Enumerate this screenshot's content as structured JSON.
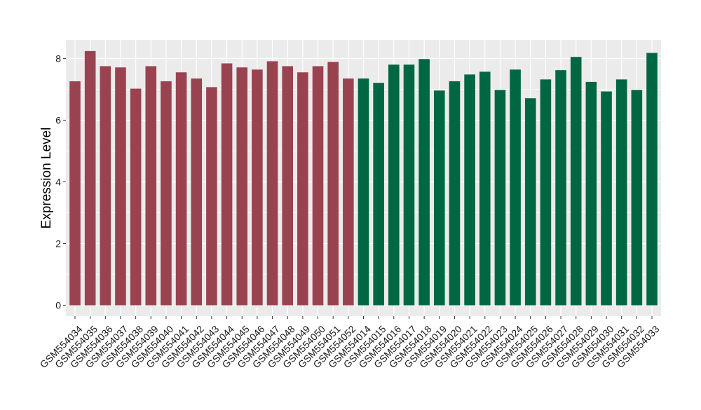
{
  "chart_data": {
    "type": "bar",
    "xlabel": "",
    "ylabel": "Expression Level",
    "ylim": [
      -0.35,
      8.6
    ],
    "yticks": [
      0,
      2,
      4,
      6,
      8
    ],
    "grid": true,
    "legend": "none",
    "colors": {
      "group_1": "#9a4350",
      "group_2": "#006743",
      "panel_bg": "#ebebeb",
      "grid": "#ffffff"
    },
    "categories": [
      "GSM554034",
      "GSM554035",
      "GSM554036",
      "GSM554037",
      "GSM554038",
      "GSM554039",
      "GSM554040",
      "GSM554041",
      "GSM554042",
      "GSM554043",
      "GSM554044",
      "GSM554045",
      "GSM554046",
      "GSM554047",
      "GSM554048",
      "GSM554049",
      "GSM554050",
      "GSM554051",
      "GSM554052",
      "GSM554014",
      "GSM554015",
      "GSM554016",
      "GSM554017",
      "GSM554018",
      "GSM554019",
      "GSM554020",
      "GSM554021",
      "GSM554022",
      "GSM554023",
      "GSM554024",
      "GSM554025",
      "GSM554026",
      "GSM554027",
      "GSM554028",
      "GSM554029",
      "GSM554030",
      "GSM554031",
      "GSM554032",
      "GSM554033"
    ],
    "values": [
      7.26,
      8.24,
      7.75,
      7.71,
      7.02,
      7.75,
      7.26,
      7.55,
      7.35,
      7.07,
      7.84,
      7.71,
      7.64,
      7.91,
      7.75,
      7.55,
      7.75,
      7.89,
      7.35,
      7.35,
      7.21,
      7.8,
      7.8,
      7.98,
      6.96,
      7.26,
      7.48,
      7.57,
      6.98,
      7.64,
      6.71,
      7.32,
      7.62,
      8.05,
      7.24,
      6.93,
      7.32,
      6.98,
      8.18
    ],
    "groups": [
      1,
      1,
      1,
      1,
      1,
      1,
      1,
      1,
      1,
      1,
      1,
      1,
      1,
      1,
      1,
      1,
      1,
      1,
      1,
      2,
      2,
      2,
      2,
      2,
      2,
      2,
      2,
      2,
      2,
      2,
      2,
      2,
      2,
      2,
      2,
      2,
      2,
      2,
      2
    ]
  }
}
